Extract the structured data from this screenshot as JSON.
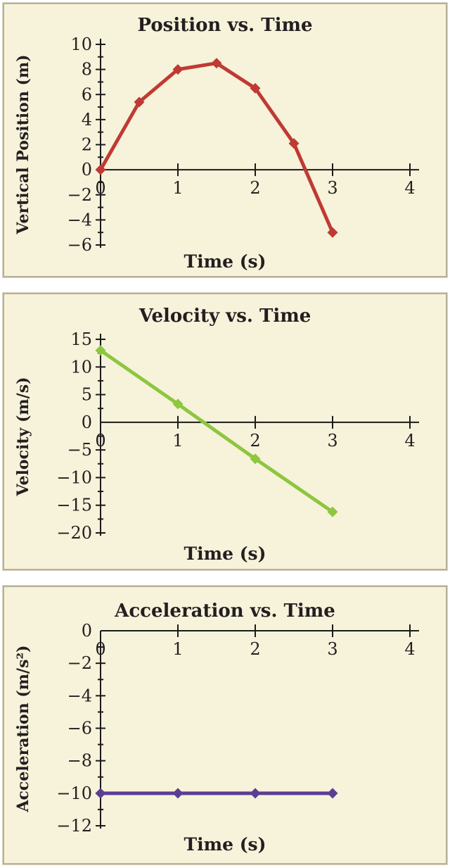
{
  "page": {
    "background_color": "#ffffff",
    "panel_background_color": "#f7f2da",
    "panel_border_color": "#b8b194",
    "axis_color": "#1a1a1a",
    "text_color": "#231f20"
  },
  "chart_data": [
    {
      "type": "line",
      "title": "Position vs. Time",
      "xlabel": "Time (s)",
      "ylabel": "Vertical Position (m)",
      "line_color": "#bf3a33",
      "marker": "diamond",
      "grid": false,
      "legend": false,
      "x": [
        0,
        0.5,
        1,
        1.5,
        2,
        2.5,
        3
      ],
      "values": [
        0,
        5.4,
        8.0,
        8.5,
        6.5,
        2.1,
        -5.0
      ],
      "xlim": [
        0,
        4
      ],
      "ylim": [
        -6,
        10
      ],
      "x_tick_values": [
        0,
        1,
        2,
        3,
        4
      ],
      "x_tick_labels": [
        "0",
        "1",
        "2",
        "3",
        "4"
      ],
      "y_tick_values": [
        -6,
        -4,
        -2,
        0,
        2,
        4,
        6,
        8,
        10
      ],
      "y_tick_labels": [
        "−6",
        "−4",
        "−2",
        "0",
        "2",
        "4",
        "6",
        "8",
        "10"
      ],
      "y_minor_tick_step": 1
    },
    {
      "type": "line",
      "title": "Velocity vs. Time",
      "xlabel": "Time (s)",
      "ylabel": "Velocity (m/s)",
      "line_color": "#8dc63f",
      "marker": "diamond",
      "grid": false,
      "legend": false,
      "x": [
        0,
        1,
        2,
        3
      ],
      "values": [
        13,
        3.3,
        -6.6,
        -16.2
      ],
      "xlim": [
        0,
        4
      ],
      "ylim": [
        -20,
        15
      ],
      "x_tick_values": [
        0,
        1,
        2,
        3,
        4
      ],
      "x_tick_labels": [
        "0",
        "1",
        "2",
        "3",
        "4"
      ],
      "y_tick_values": [
        -20,
        -15,
        -10,
        -5,
        0,
        5,
        10,
        15
      ],
      "y_tick_labels": [
        "−20",
        "−15",
        "−10",
        "−5",
        "0",
        "5",
        "10",
        "15"
      ],
      "y_minor_tick_step": 2.5
    },
    {
      "type": "line",
      "title": "Acceleration vs. Time",
      "xlabel": "Time (s)",
      "ylabel": "Acceleration (m/s²)",
      "line_color": "#5b3d94",
      "marker": "diamond",
      "grid": false,
      "legend": false,
      "x": [
        0,
        1,
        2,
        3
      ],
      "values": [
        -10,
        -10,
        -10,
        -10
      ],
      "xlim": [
        0,
        4
      ],
      "ylim": [
        -12,
        0
      ],
      "x_tick_values": [
        0,
        1,
        2,
        3,
        4
      ],
      "x_tick_labels": [
        "0",
        "1",
        "2",
        "3",
        "4"
      ],
      "y_tick_values": [
        -12,
        -10,
        -8,
        -6,
        -4,
        -2,
        0
      ],
      "y_tick_labels": [
        "−12",
        "−10",
        "−8",
        "−6",
        "−4",
        "−2",
        "0"
      ],
      "y_minor_tick_step": 1
    }
  ]
}
